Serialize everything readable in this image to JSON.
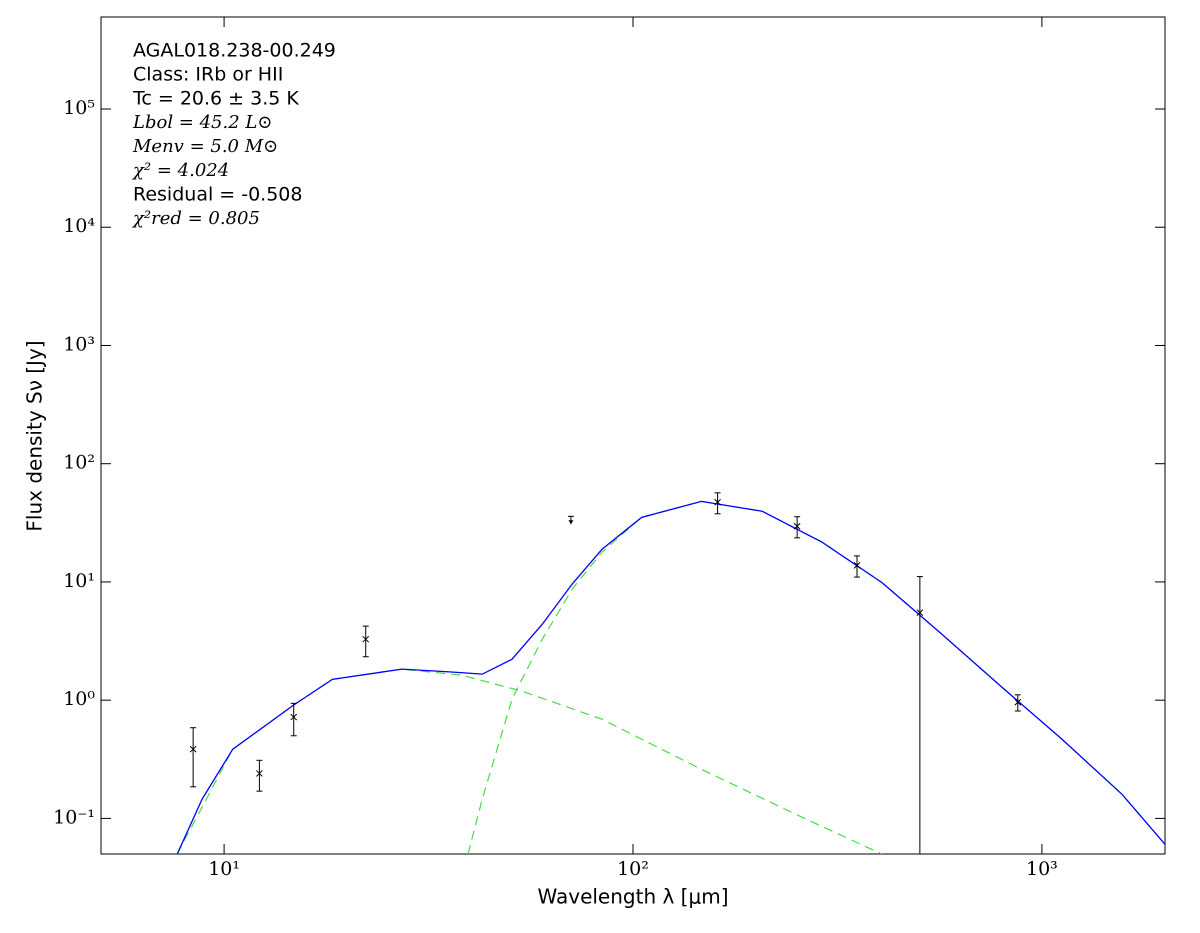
{
  "chart_data": {
    "type": "sed",
    "xlabel": "Wavelength λ [μm]",
    "ylabel": "Flux density Sν [Jy]",
    "annotations": [
      "AGAL018.238-00.249",
      "Class: IRb or HII",
      "Tc = 20.6 ± 3.5 K",
      "Lbol = 45.2 L⊙",
      "Menv = 5.0 M⊙",
      "χ² = 4.024",
      "Residual = -0.508",
      "χ²red = 0.805"
    ],
    "xscale": "log",
    "yscale": "log",
    "grid": false,
    "xlim": [
      5,
      2000
    ],
    "ylim": [
      0.05,
      600000
    ],
    "xticks": [
      {
        "value": 10,
        "label": "10¹"
      },
      {
        "value": 100,
        "label": "10²"
      },
      {
        "value": 1000,
        "label": "10³"
      }
    ],
    "yticks": [
      {
        "value": 0.1,
        "label": "10⁻¹"
      },
      {
        "value": 1,
        "label": "10⁰"
      },
      {
        "value": 10,
        "label": "10¹"
      },
      {
        "value": 100,
        "label": "10²"
      },
      {
        "value": 1000,
        "label": "10³"
      },
      {
        "value": 10000,
        "label": "10⁴"
      },
      {
        "value": 100000,
        "label": "10⁵"
      }
    ],
    "lines": [
      {
        "style": "dashed",
        "color": "#44dd44",
        "x": [
          7.68,
          10.5,
          14.8,
          18.4,
          27.2,
          38,
          53.6,
          84,
          147,
          258,
          406
        ],
        "values": [
          0.05,
          0.385,
          0.91,
          1.5,
          1.83,
          1.63,
          1.19,
          0.69,
          0.26,
          0.103,
          0.05
        ]
      },
      {
        "style": "dashed",
        "color": "#44dd44",
        "x": [
          39.5,
          42.8,
          50.6,
          60,
          71,
          84,
          105,
          147,
          207,
          290,
          406,
          570,
          798,
          1119,
          1570,
          2020
        ],
        "values": [
          0.05,
          0.146,
          1.02,
          3.28,
          8.7,
          17.9,
          35.2,
          48,
          39.6,
          21.7,
          9.9,
          3.6,
          1.29,
          0.468,
          0.16,
          0.058
        ]
      },
      {
        "style": "solid",
        "color": "#0000ff",
        "x": [
          7.68,
          8.84,
          10.5,
          14.8,
          18.4,
          27.2,
          36,
          42.8,
          50.6,
          60,
          71,
          84,
          105,
          147,
          207,
          290,
          406,
          570,
          798,
          1119,
          1570,
          2020
        ],
        "values": [
          0.05,
          0.146,
          0.385,
          0.91,
          1.5,
          1.83,
          1.73,
          1.66,
          2.22,
          4.39,
          9.6,
          18.9,
          35.2,
          48,
          39.6,
          21.7,
          9.9,
          3.6,
          1.29,
          0.468,
          0.16,
          0.058
        ]
      }
    ],
    "points": {
      "color": "#000000",
      "x": [
        8.4,
        12.2,
        14.8,
        22.2,
        161,
        252,
        353,
        503,
        873
      ],
      "values": [
        0.385,
        0.24,
        0.72,
        3.28,
        47.2,
        29.6,
        13.8,
        5.5,
        0.96
      ],
      "errors": [
        0.2,
        0.07,
        0.22,
        0.95,
        9.5,
        6,
        2.8,
        5.6,
        0.15
      ]
    },
    "upper_limits": {
      "color": "#000000",
      "x": [
        70.5
      ],
      "values": [
        35.9
      ]
    }
  }
}
